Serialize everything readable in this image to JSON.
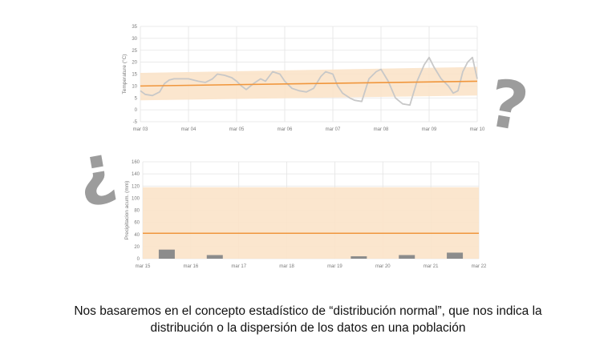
{
  "decorations": {
    "question_open": "¿",
    "question_close": "?",
    "question_color": "#9c9c9c"
  },
  "colors": {
    "band": "#fbe3c9",
    "mean_line": "#f0963c",
    "temperature_line": "#c8c8c8",
    "bars": "#8c8c8c",
    "grid": "#e4e4e4"
  },
  "chart_data": [
    {
      "type": "line",
      "ylabel": "Temperature (°C)",
      "xlabel": "",
      "x_tick_labels": [
        "mar 03",
        "mar 04",
        "mar 05",
        "mar 06",
        "mar 07",
        "mar 08",
        "mar 09",
        "mar 10"
      ],
      "y_ticks": [
        -5,
        0,
        5,
        10,
        15,
        20,
        25,
        30,
        35
      ],
      "ylim": [
        -5,
        35
      ],
      "xlim": [
        0,
        7
      ],
      "grid": true,
      "series": [
        {
          "role": "temperature",
          "x": [
            0,
            0.1,
            0.25,
            0.4,
            0.5,
            0.6,
            0.7,
            0.85,
            1.0,
            1.2,
            1.35,
            1.5,
            1.6,
            1.75,
            1.9,
            2.0,
            2.1,
            2.2,
            2.35,
            2.5,
            2.6,
            2.75,
            2.9,
            3.0,
            3.15,
            3.3,
            3.45,
            3.6,
            3.75,
            3.85,
            4.0,
            4.1,
            4.2,
            4.35,
            4.45,
            4.6,
            4.75,
            4.9,
            5.0,
            5.15,
            5.3,
            5.45,
            5.6,
            5.75,
            5.9,
            6.0,
            6.1,
            6.25,
            6.4,
            6.5,
            6.6,
            6.7,
            6.8,
            6.9,
            7.0
          ],
          "y": [
            8,
            6.5,
            6,
            7.5,
            11,
            12.5,
            13,
            13,
            13,
            12,
            11.5,
            13,
            15,
            14.5,
            13.5,
            12,
            10,
            8.5,
            11,
            13,
            12,
            16,
            15,
            12,
            9,
            8,
            7.5,
            9,
            14,
            16,
            15,
            10,
            7,
            5,
            4,
            3.5,
            13,
            16,
            17,
            12,
            5,
            2.5,
            2,
            12,
            19,
            22,
            18,
            13,
            10,
            7,
            8,
            16,
            20,
            22,
            13
          ]
        },
        {
          "role": "mean",
          "x": [
            0,
            7
          ],
          "y": [
            10,
            12
          ]
        }
      ],
      "band": {
        "x": [
          0,
          7
        ],
        "lower": [
          4,
          6
        ],
        "upper": [
          15.5,
          18
        ]
      }
    },
    {
      "type": "bar",
      "ylabel": "Precipitacion acum. (mm)",
      "xlabel": "",
      "x_tick_labels": [
        "mar 15",
        "mar 16",
        "mar 17",
        "mar 18",
        "mar 19",
        "mar 20",
        "mar 21",
        "mar 22"
      ],
      "y_ticks": [
        0,
        20,
        40,
        60,
        80,
        100,
        120,
        140,
        160
      ],
      "ylim": [
        0,
        160
      ],
      "xlim": [
        0,
        7
      ],
      "grid": true,
      "bars": {
        "x": [
          0.5,
          1.5,
          4.5,
          5.5,
          6.5
        ],
        "values": [
          15,
          6,
          4,
          6,
          10
        ]
      },
      "mean": 42,
      "band": {
        "lower": 0,
        "upper": 118
      }
    }
  ],
  "caption": {
    "line1": "Nos basaremos en el concepto estadístico de “distribución normal”, que nos indica la",
    "line2": "distribución o la dispersión de los datos en una población"
  }
}
